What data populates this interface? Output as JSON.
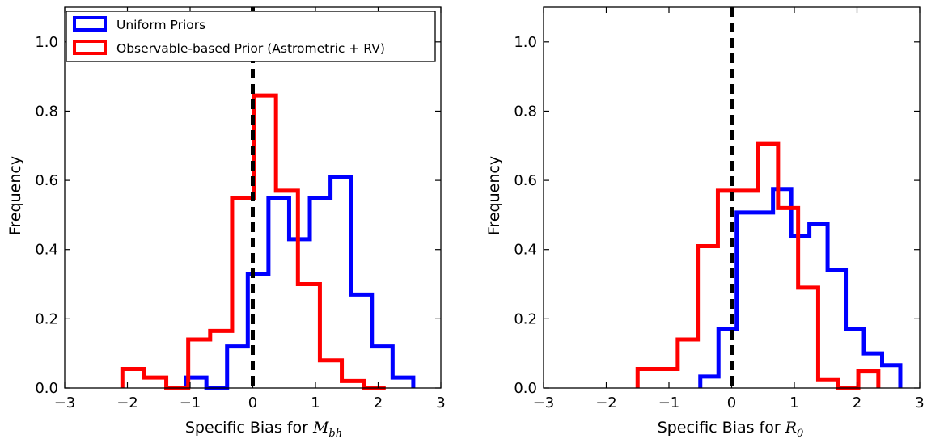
{
  "chart_data": [
    {
      "type": "histogram",
      "xlabel": "Specific Bias for ",
      "xlabel_symbol": "M",
      "xlabel_subscript": "bh",
      "ylabel": "Frequency",
      "xlim": [
        -3,
        3
      ],
      "ylim": [
        0,
        1.1
      ],
      "xticks": [
        "−3",
        "−2",
        "−1",
        "0",
        "1",
        "2",
        "3"
      ],
      "yticks": [
        "0.0",
        "0.2",
        "0.4",
        "0.6",
        "0.8",
        "1.0"
      ],
      "vline_x": 0,
      "legend": {
        "placement": "top-left",
        "entries": [
          "Uniform Priors",
          "Observable-based Prior (Astrometric + RV)"
        ]
      },
      "series": [
        {
          "name": "Uniform Priors",
          "color": "#0000ff",
          "edges": [
            -1.07,
            -0.74,
            -0.41,
            -0.08,
            0.25,
            0.58,
            0.91,
            1.24,
            1.57,
            1.9,
            2.23,
            2.56
          ],
          "values": [
            0.03,
            0.0,
            0.12,
            0.33,
            0.55,
            0.43,
            0.55,
            0.61,
            0.27,
            0.12,
            0.03
          ]
        },
        {
          "name": "Observable-based Prior (Astrometric + RV)",
          "color": "#ff0000",
          "edges": [
            -2.08,
            -1.73,
            -1.38,
            -1.03,
            -0.68,
            -0.33,
            0.02,
            0.37,
            0.72,
            1.07,
            1.42,
            1.77,
            2.12
          ],
          "values": [
            0.055,
            0.03,
            0.0,
            0.14,
            0.165,
            0.55,
            0.845,
            0.57,
            0.3,
            0.08,
            0.02,
            0.0
          ]
        }
      ]
    },
    {
      "type": "histogram",
      "xlabel": "Specific Bias for ",
      "xlabel_symbol": "R",
      "xlabel_subscript": "0",
      "ylabel": "Frequency",
      "xlim": [
        -3,
        3
      ],
      "ylim": [
        0,
        1.1
      ],
      "xticks": [
        "−3",
        "−2",
        "−1",
        "0",
        "1",
        "2",
        "3"
      ],
      "yticks": [
        "0.0",
        "0.2",
        "0.4",
        "0.6",
        "0.8",
        "1.0"
      ],
      "vline_x": 0,
      "series": [
        {
          "name": "Uniform Priors",
          "color": "#0000ff",
          "edges": [
            -0.5,
            -0.21,
            0.08,
            0.37,
            0.66,
            0.95,
            1.24,
            1.53,
            1.82,
            2.11,
            2.4,
            2.69
          ],
          "values": [
            0.033,
            0.17,
            0.507,
            0.507,
            0.575,
            0.44,
            0.473,
            0.34,
            0.17,
            0.1,
            0.066
          ]
        },
        {
          "name": "Observable-based Prior (Astrometric + RV)",
          "color": "#ff0000",
          "edges": [
            -1.5,
            -1.18,
            -0.86,
            -0.54,
            -0.22,
            0.1,
            0.42,
            0.74,
            1.06,
            1.38,
            1.7,
            2.02,
            2.34
          ],
          "values": [
            0.055,
            0.055,
            0.14,
            0.41,
            0.57,
            0.57,
            0.705,
            0.52,
            0.29,
            0.025,
            0.0,
            0.05
          ]
        }
      ]
    }
  ]
}
